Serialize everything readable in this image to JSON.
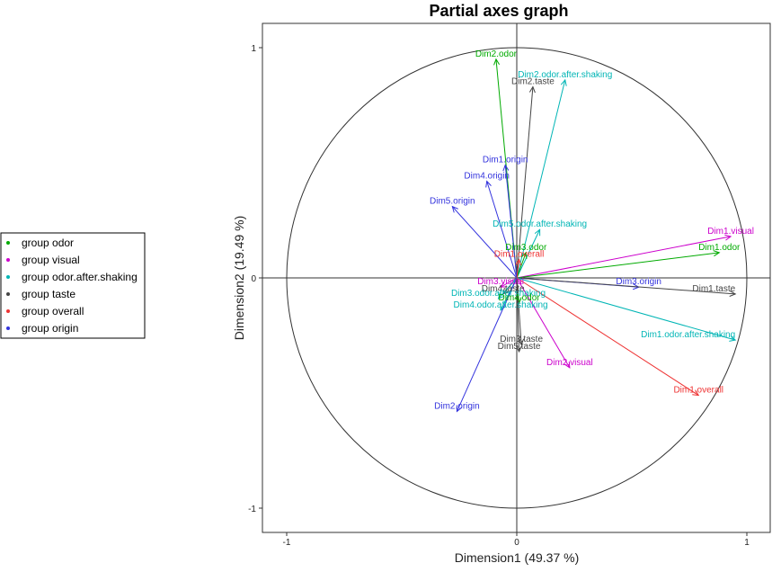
{
  "chart_data": {
    "type": "scatter",
    "title": "Partial axes graph",
    "xlabel": "Dimension1 (49.37 %)",
    "ylabel": "Dimension2 (19.49 %)",
    "xlim": [
      -1.1,
      1.1
    ],
    "ylim": [
      -1.1,
      1.1
    ],
    "x_ticks": [
      "-1",
      "0",
      "1"
    ],
    "y_ticks": [
      "1",
      "0",
      "-1"
    ],
    "unit_circle": true,
    "legend": {
      "position": "left",
      "entries": [
        {
          "name": "group odor",
          "color": "#00AA00"
        },
        {
          "name": "group visual",
          "color": "#CC00CC"
        },
        {
          "name": "group odor.after.shaking",
          "color": "#00B5B5"
        },
        {
          "name": "group taste",
          "color": "#444444"
        },
        {
          "name": "group overall",
          "color": "#EE3333"
        },
        {
          "name": "group origin",
          "color": "#3333DD"
        }
      ]
    },
    "colors": {
      "odor": "#00AA00",
      "visual": "#CC00CC",
      "odor.after.shaking": "#00B5B5",
      "taste": "#444444",
      "overall": "#EE3333",
      "origin": "#3333DD"
    },
    "series": [
      {
        "label": "Dim2.odor",
        "group": "odor",
        "x": -0.09,
        "y": 0.95
      },
      {
        "label": "Dim2.odor.after.shaking",
        "group": "odor.after.shaking",
        "x": 0.21,
        "y": 0.86
      },
      {
        "label": "Dim2.taste",
        "group": "taste",
        "x": 0.07,
        "y": 0.83
      },
      {
        "label": "Dim1.origin",
        "group": "origin",
        "x": -0.05,
        "y": 0.49
      },
      {
        "label": "Dim4.origin",
        "group": "origin",
        "x": -0.13,
        "y": 0.42
      },
      {
        "label": "Dim5.origin",
        "group": "origin",
        "x": -0.28,
        "y": 0.31
      },
      {
        "label": "Dim5.odor.after.shaking",
        "group": "odor.after.shaking",
        "x": 0.1,
        "y": 0.21
      },
      {
        "label": "Dim1.visual",
        "group": "visual",
        "x": 0.93,
        "y": 0.18
      },
      {
        "label": "Dim3.odor",
        "group": "odor",
        "x": 0.04,
        "y": 0.11
      },
      {
        "label": "Dim1.odor",
        "group": "odor",
        "x": 0.88,
        "y": 0.11
      },
      {
        "label": "Dim1.overall",
        "group": "overall",
        "x": 0.01,
        "y": 0.08
      },
      {
        "label": "Dim3.origin",
        "group": "origin",
        "x": 0.53,
        "y": -0.04
      },
      {
        "label": "Dim1.taste",
        "group": "taste",
        "x": 0.95,
        "y": -0.07
      },
      {
        "label": "Dim3.visual",
        "group": "visual",
        "x": -0.07,
        "y": -0.04
      },
      {
        "label": "Dim4.taste",
        "group": "taste",
        "x": -0.06,
        "y": -0.07
      },
      {
        "label": "Dim3.odor.after.shaking",
        "group": "odor.after.shaking",
        "x": -0.08,
        "y": -0.09
      },
      {
        "label": "Dim4.odor",
        "group": "odor",
        "x": 0.01,
        "y": -0.11
      },
      {
        "label": "Dim4.odor.after.shaking",
        "group": "odor.after.shaking",
        "x": -0.07,
        "y": -0.14
      },
      {
        "label": "Dim1.odor.after.shaking",
        "group": "odor.after.shaking",
        "x": 0.95,
        "y": -0.27
      },
      {
        "label": "Dim3.taste",
        "group": "taste",
        "x": 0.02,
        "y": -0.29
      },
      {
        "label": "Dim5.taste",
        "group": "taste",
        "x": 0.01,
        "y": -0.32
      },
      {
        "label": "Dim2.visual",
        "group": "visual",
        "x": 0.23,
        "y": -0.39
      },
      {
        "label": "Dim1.overall",
        "group": "overall",
        "x": 0.79,
        "y": -0.51
      },
      {
        "label": "Dim2.origin",
        "group": "origin",
        "x": -0.26,
        "y": -0.58
      }
    ]
  }
}
